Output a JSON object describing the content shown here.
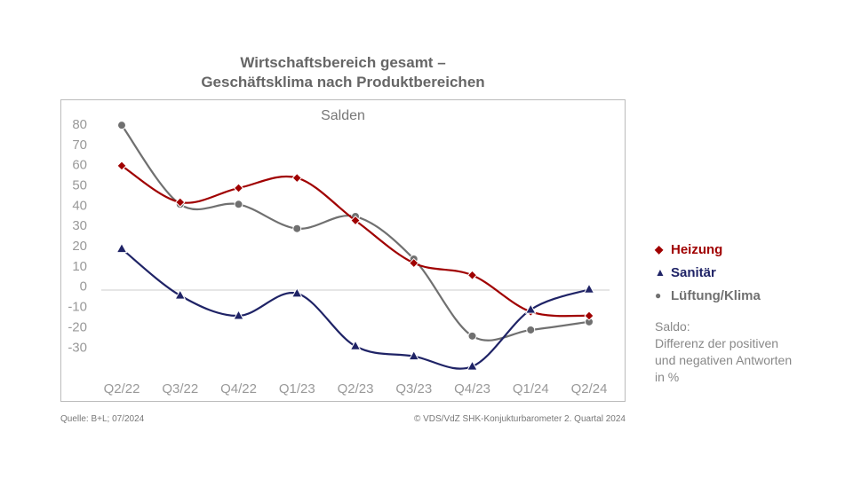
{
  "title_line1": "Wirtschaftsbereich gesamt –",
  "title_line2": "Geschäftsklima nach Produktbereichen",
  "source": "Quelle: B+L; 07/2024",
  "copyright": "© VDS/VdZ SHK-Konjukturbarometer 2. Quartal 2024",
  "note_title": "Saldo:",
  "note_text": "Differenz der positiven\nund negativen Antworten\nin %",
  "chart_data": {
    "type": "line",
    "subtitle": "Salden",
    "categories": [
      "Q2/22",
      "Q3/22",
      "Q4/22",
      "Q1/23",
      "Q2/23",
      "Q3/23",
      "Q4/23",
      "Q1/24",
      "Q2/24"
    ],
    "y_ticks": [
      80,
      70,
      60,
      50,
      40,
      30,
      20,
      10,
      0,
      -10,
      -20,
      -30
    ],
    "ylim": [
      -45,
      85
    ],
    "grid": false,
    "legend": "right",
    "series": [
      {
        "name": "Heizung",
        "color": "#a00000",
        "marker": "diamond",
        "values": [
          59,
          41,
          48,
          53,
          32,
          11,
          5,
          -13,
          -15
        ]
      },
      {
        "name": "Sanitär",
        "color": "#1f2366",
        "marker": "triangle",
        "values": [
          18,
          -5,
          -15,
          -4,
          -30,
          -35,
          -40,
          -12,
          -2
        ]
      },
      {
        "name": "Lüftung/Klima",
        "color": "#707070",
        "marker": "circle",
        "values": [
          79,
          40,
          40,
          28,
          34,
          13,
          -25,
          -22,
          -18
        ]
      }
    ]
  }
}
